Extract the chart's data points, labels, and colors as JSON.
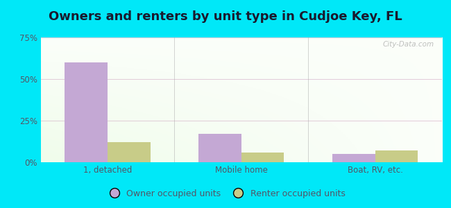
{
  "title": "Owners and renters by unit type in Cudjoe Key, FL",
  "categories": [
    "1, detached",
    "Mobile home",
    "Boat, RV, etc."
  ],
  "owner_values": [
    60.0,
    17.0,
    5.0
  ],
  "renter_values": [
    12.0,
    6.0,
    7.0
  ],
  "owner_color": "#c4a8d4",
  "renter_color": "#c8cc88",
  "ylim": [
    0,
    75
  ],
  "yticks": [
    0,
    25,
    50,
    75
  ],
  "ytick_labels": [
    "0%",
    "25%",
    "50%",
    "75%"
  ],
  "outer_bg": "#00e8f8",
  "bar_width": 0.32,
  "legend_labels": [
    "Owner occupied units",
    "Renter occupied units"
  ],
  "watermark": "City-Data.com",
  "title_fontsize": 13,
  "tick_fontsize": 8.5,
  "legend_fontsize": 9
}
